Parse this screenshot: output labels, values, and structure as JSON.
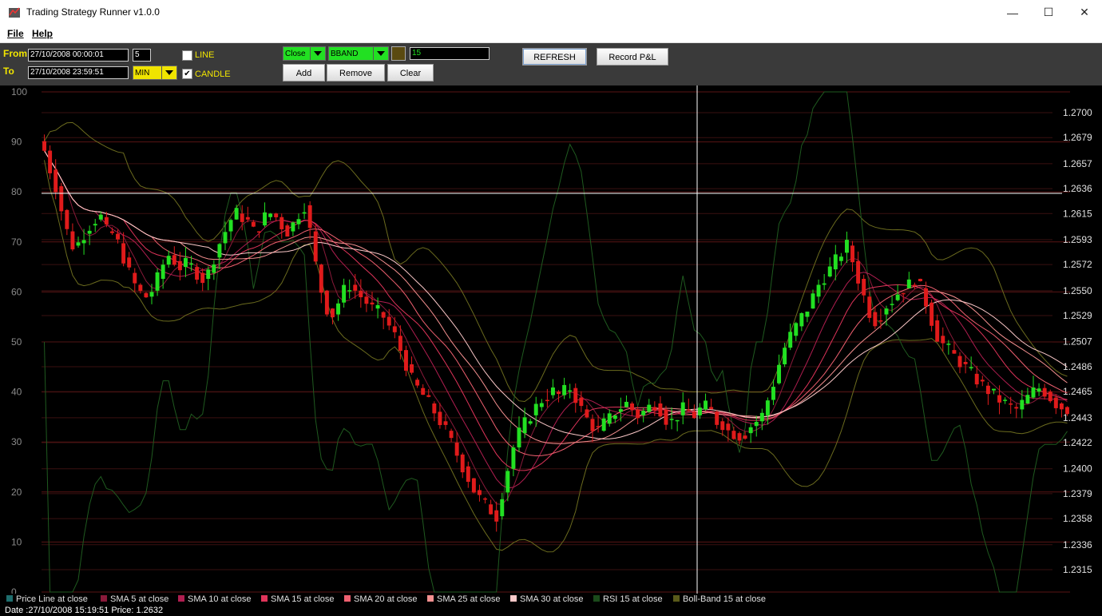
{
  "window": {
    "title": "Trading Strategy Runner v1.0.0",
    "controls": {
      "minimize": "—",
      "maximize": "☐",
      "close": "✕"
    }
  },
  "menu": [
    "File",
    "Help"
  ],
  "toolbar": {
    "from_label": "From",
    "to_label": "To",
    "from_value": "27/10/2008 00:00:01",
    "to_value": "27/10/2008 23:59:51",
    "interval_value": "5",
    "unit_value": "MIN",
    "line_label": "LINE",
    "line_checked": false,
    "candle_label": "CANDLE",
    "candle_checked": true,
    "source_value": "Close",
    "indicator_value": "BBAND",
    "period_value": "15",
    "add_label": "Add",
    "remove_label": "Remove",
    "clear_label": "Clear",
    "refresh_label": "REFRESH",
    "record_label": "Record P&L"
  },
  "chart_data": {
    "type": "candlestick",
    "left_axis": {
      "ticks": [
        "0",
        "10",
        "20",
        "30",
        "40",
        "50",
        "60",
        "70",
        "80",
        "90",
        "100"
      ],
      "ylim": [
        0,
        100
      ]
    },
    "right_axis": {
      "ticks": [
        "1.2315",
        "1.2336",
        "1.2358",
        "1.2379",
        "1.2400",
        "1.2422",
        "1.2443",
        "1.2465",
        "1.2486",
        "1.2507",
        "1.2529",
        "1.2550",
        "1.2572",
        "1.2593",
        "1.2615",
        "1.2636",
        "1.2657",
        "1.2679",
        "1.2700"
      ],
      "ylim": [
        1.2305,
        1.2707
      ]
    },
    "crosshair": {
      "price": 1.2632
    },
    "close_series": [
      1.2668,
      1.2652,
      1.2638,
      1.2618,
      1.26,
      1.2588,
      1.259,
      1.2598,
      1.2605,
      1.261,
      1.2612,
      1.26,
      1.2598,
      1.259,
      1.2578,
      1.2565,
      1.2555,
      1.2548,
      1.2545,
      1.255,
      1.256,
      1.2572,
      1.258,
      1.2575,
      1.257,
      1.2572,
      1.257,
      1.2565,
      1.256,
      1.2565,
      1.2578,
      1.259,
      1.26,
      1.261,
      1.2615,
      1.2612,
      1.2608,
      1.26,
      1.2605,
      1.2612,
      1.2615,
      1.2612,
      1.2605,
      1.26,
      1.2606,
      1.2615,
      1.2622,
      1.26,
      1.2572,
      1.255,
      1.2535,
      1.253,
      1.254,
      1.255,
      1.2555,
      1.255,
      1.2545,
      1.254,
      1.2535,
      1.2532,
      1.2528,
      1.252,
      1.2512,
      1.25,
      1.2488,
      1.2475,
      1.2468,
      1.2462,
      1.2455,
      1.2448,
      1.244,
      1.2432,
      1.2422,
      1.2412,
      1.2402,
      1.2392,
      1.2382,
      1.2375,
      1.237,
      1.2365,
      1.236,
      1.238,
      1.24,
      1.2418,
      1.243,
      1.2438,
      1.2445,
      1.2452,
      1.2458,
      1.2462,
      1.2465,
      1.2462,
      1.2465,
      1.2468,
      1.246,
      1.245,
      1.2442,
      1.2436,
      1.2432,
      1.2438,
      1.2442,
      1.2448,
      1.2452,
      1.2455,
      1.245,
      1.2445,
      1.2448,
      1.2452,
      1.2455,
      1.245,
      1.2442,
      1.244,
      1.2445,
      1.245,
      1.2448,
      1.2445,
      1.245,
      1.2452,
      1.2448,
      1.244,
      1.2438,
      1.2432,
      1.243,
      1.2428,
      1.243,
      1.2436,
      1.244,
      1.2445,
      1.2458,
      1.2472,
      1.2488,
      1.2502,
      1.2512,
      1.252,
      1.2528,
      1.2535,
      1.2545,
      1.2555,
      1.2562,
      1.2568,
      1.2575,
      1.2582,
      1.2588,
      1.2575,
      1.256,
      1.2545,
      1.2532,
      1.2525,
      1.253,
      1.2538,
      1.2542,
      1.2548,
      1.2552,
      1.2555,
      1.256,
      1.2552,
      1.254,
      1.2525,
      1.2512,
      1.2505,
      1.25,
      1.2495,
      1.249,
      1.2485,
      1.248,
      1.2475,
      1.247,
      1.2466,
      1.2462,
      1.2458,
      1.2455,
      1.2452,
      1.245,
      1.2455,
      1.246,
      1.2465,
      1.2468,
      1.2465,
      1.246,
      1.2455,
      1.2452,
      1.245
    ]
  },
  "legend": [
    {
      "label": "Price Line at close",
      "color": "#1e6e6e"
    },
    {
      "label": "SMA 5 at close",
      "color": "#8a1a3a"
    },
    {
      "label": "SMA 10 at close",
      "color": "#b01e50"
    },
    {
      "label": "SMA 15 at close",
      "color": "#e0345a"
    },
    {
      "label": "SMA 20 at close",
      "color": "#f06070"
    },
    {
      "label": "SMA 25 at close",
      "color": "#f59090"
    },
    {
      "label": "SMA 30 at close",
      "color": "#fbc8c8"
    },
    {
      "label": "RSI 15 at close",
      "color": "#1b4a1b"
    },
    {
      "label": "Boll-Band 15 at close",
      "color": "#5a5a1a"
    }
  ],
  "status": {
    "text": "Date :27/10/2008 15:19:51  Price: 1.2632"
  }
}
